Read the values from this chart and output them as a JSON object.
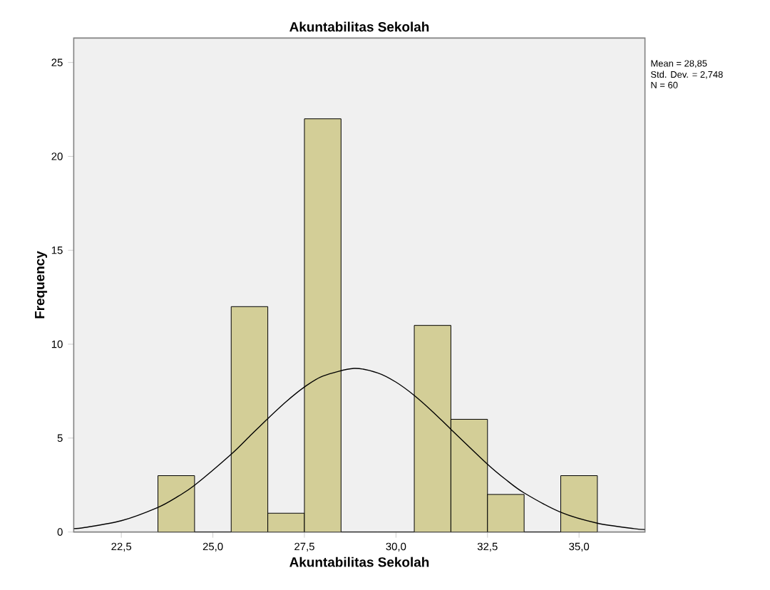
{
  "chart_data": {
    "type": "histogram",
    "title": "Akuntabilitas Sekolah",
    "xlabel": "Akuntabilitas Sekolah",
    "ylabel": "Frequency",
    "bins": [
      23.5,
      24.5,
      25.5,
      26.5,
      27.5,
      28.5,
      29.5,
      30.5,
      31.5,
      32.5,
      33.5,
      34.5,
      35.5
    ],
    "values": [
      3,
      0,
      12,
      1,
      22,
      0,
      0,
      11,
      6,
      2,
      0,
      3
    ],
    "color": "#d3ce97",
    "series": [
      {
        "type": "line",
        "color": "#000000",
        "x": [
          21.2,
          21.5,
          22.5,
          23.5,
          24.0,
          24.5,
          25.5,
          26.0,
          26.5,
          27.0,
          27.5,
          28.0,
          28.85,
          29.5,
          30.0,
          30.5,
          31.0,
          31.5,
          32.5,
          33.0,
          33.5,
          34.5,
          35.5,
          36.5,
          36.8
        ],
        "values": [
          0.18,
          0.24,
          0.6,
          1.31,
          1.84,
          2.49,
          4.14,
          5.09,
          6.04,
          6.94,
          7.72,
          8.3,
          8.71,
          8.47,
          7.98,
          7.27,
          6.41,
          5.47,
          3.61,
          2.79,
          2.08,
          1.05,
          0.47,
          0.18,
          0.13
        ]
      }
    ],
    "xlim": [
      21.2,
      36.8
    ],
    "ylim": [
      0,
      26.3
    ],
    "xticks": [
      {
        "value": 22.5,
        "label": "22,5"
      },
      {
        "value": 25.0,
        "label": "25,0"
      },
      {
        "value": 27.5,
        "label": "27,5"
      },
      {
        "value": 30.0,
        "label": "30,0"
      },
      {
        "value": 32.5,
        "label": "32,5"
      },
      {
        "value": 35.0,
        "label": "35,0"
      }
    ],
    "yticks": [
      0,
      5,
      10,
      15,
      20,
      25
    ],
    "annotations": [
      "Mean = 28,85",
      "Std. Dev. = 2,748",
      "N = 60"
    ]
  }
}
